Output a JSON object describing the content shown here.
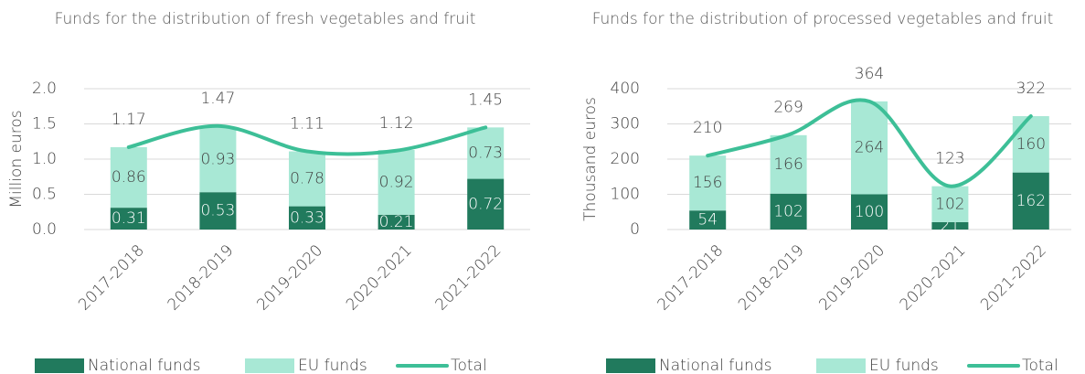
{
  "chart_data": [
    {
      "type": "bar",
      "title": "Funds for the distribution of fresh vegetables and fruit",
      "y_label": "Million euros",
      "categories": [
        "2017-2018",
        "2018-2019",
        "2019-2020",
        "2020-2021",
        "2021-2022"
      ],
      "series": [
        {
          "name": "National funds",
          "color": "#217a5d",
          "values": [
            0.31,
            0.53,
            0.33,
            0.21,
            0.72
          ]
        },
        {
          "name": "EU funds",
          "color": "#a8e8d5",
          "values": [
            0.86,
            0.93,
            0.78,
            0.92,
            0.73
          ]
        },
        {
          "name": "Total",
          "type": "line",
          "color": "#3dbf97",
          "values": [
            1.17,
            1.47,
            1.11,
            1.12,
            1.45
          ]
        }
      ],
      "ylim": [
        0,
        2
      ],
      "yticks": [
        {
          "value": 0,
          "label": "0.0"
        },
        0.5,
        {
          "value": 1,
          "label": "1.0"
        },
        1.5,
        {
          "value": 2,
          "label": "2.0"
        }
      ],
      "grid": true
    },
    {
      "type": "bar",
      "title": "Funds for the distribution of processed vegetables and fruit",
      "y_label": "Thousand euros",
      "categories": [
        "2017-2018",
        "2018-2019",
        "2019-2020",
        "2020-2021",
        "2021-2022"
      ],
      "series": [
        {
          "name": "National funds",
          "color": "#217a5d",
          "values": [
            54,
            102,
            100,
            21,
            162
          ]
        },
        {
          "name": "EU funds",
          "color": "#a8e8d5",
          "values": [
            156,
            166,
            264,
            102,
            160
          ]
        },
        {
          "name": "Total",
          "type": "line",
          "color": "#3dbf97",
          "values": [
            210,
            269,
            364,
            123,
            322
          ]
        }
      ],
      "ylim": [
        0,
        400
      ],
      "yticks": [
        0,
        100,
        200,
        300,
        400
      ],
      "grid": true
    }
  ]
}
